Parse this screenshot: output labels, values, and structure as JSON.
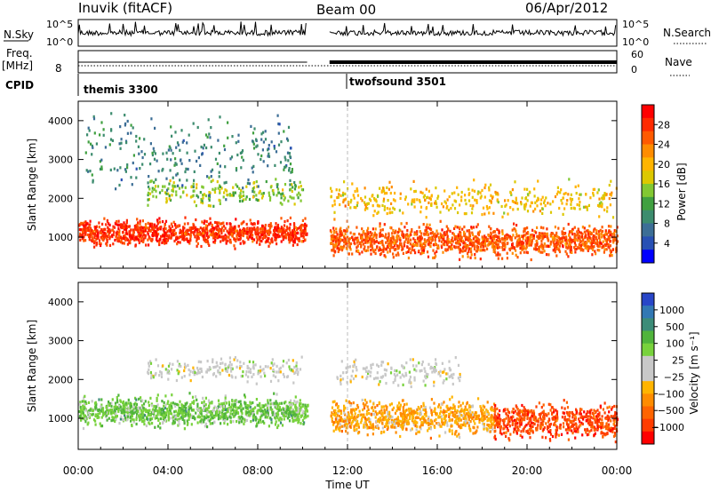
{
  "header": {
    "station": "Inuvik (fitACF)",
    "beam": "Beam 00",
    "date": "06/Apr/2012"
  },
  "top_panels": {
    "nsky_label": "N.Sky",
    "nsky_ticks": [
      "10^5",
      "10^0"
    ],
    "freq_label": "Freq.",
    "freq_unit": "[MHz]",
    "freq_ticks": [
      "8"
    ],
    "cpid_label": "CPID",
    "nsearch_label": "N.Search",
    "nsearch_ticks": [
      "10^5",
      "10^0"
    ],
    "nave_label": "Nave",
    "nave_ticks": [
      "60",
      "0"
    ]
  },
  "x_axis": {
    "label": "Time UT",
    "ticks": [
      "00:00",
      "04:00",
      "08:00",
      "12:00",
      "16:00",
      "20:00",
      "00:00"
    ]
  },
  "colorbars": {
    "power": {
      "label": "Power [dB]",
      "ticks": [
        "28",
        "24",
        "20",
        "16",
        "12",
        "8",
        "4"
      ],
      "colors": [
        "#ff0000",
        "#ff2a00",
        "#ff5a00",
        "#ff8c00",
        "#ffb400",
        "#dcc800",
        "#82c832",
        "#40a040",
        "#3c8c6e",
        "#3c6e96",
        "#2850b4",
        "#0000ff"
      ]
    },
    "velocity": {
      "label": "Velocity [m s⁻¹]",
      "ticks": [
        "1000",
        "500",
        "100",
        "25",
        "−25",
        "−100",
        "−500",
        "−1000"
      ],
      "colors": [
        "#2846c8",
        "#3278b4",
        "#3c8c78",
        "#50b43c",
        "#78d23c",
        "#c8c8c8",
        "#c8c8c8",
        "#ffb400",
        "#ff8c00",
        "#ff6400",
        "#ff3c00",
        "#ff0000"
      ]
    }
  },
  "chart_data": {
    "type": "heatmap",
    "title": "Inuvik (fitACF)  Beam 00  06/Apr/2012",
    "xlabel": "Time UT",
    "x_range": [
      "00:00",
      "24:00"
    ],
    "cpid_segments": [
      {
        "name": "themis 3300",
        "start_hour": 0.0,
        "end_hour": 10.2
      },
      {
        "name": "twofsound 3501",
        "start_hour": 11.2,
        "end_hour": 24.0
      }
    ],
    "data_gap_hours": [
      10.2,
      11.2
    ],
    "panels": [
      {
        "name": "power",
        "ylabel": "Slant Range [km]",
        "ylim": [
          200,
          4500
        ],
        "yticks": [
          "4000",
          "3000",
          "2000",
          "1000"
        ],
        "colorbar": "Power [dB]",
        "zlim": [
          0,
          30
        ],
        "scatter_bands": [
          {
            "t_start": 0.0,
            "t_end": 10.2,
            "range_center_km": 1150,
            "range_width_km": 450,
            "typical_value": 26
          },
          {
            "t_start": 11.2,
            "t_end": 24.0,
            "range_center_km": 950,
            "range_width_km": 550,
            "typical_value": 24
          },
          {
            "t_start": 3.0,
            "t_end": 10.0,
            "range_center_km": 2200,
            "range_width_km": 500,
            "typical_value": 14
          },
          {
            "t_start": 11.2,
            "t_end": 24.0,
            "range_center_km": 2000,
            "range_width_km": 600,
            "typical_value": 18
          },
          {
            "t_start": 0.3,
            "t_end": 9.5,
            "range_center_km": 3200,
            "range_width_km": 1400,
            "typical_value": 8
          }
        ]
      },
      {
        "name": "velocity",
        "ylabel": "Slant Range [km]",
        "ylim": [
          200,
          4500
        ],
        "yticks": [
          "4000",
          "3000",
          "2000",
          "1000"
        ],
        "colorbar": "Velocity [m s⁻¹]",
        "zlim": [
          -1000,
          1000
        ],
        "scatter_bands": [
          {
            "t_start": 0.0,
            "t_end": 10.2,
            "range_center_km": 1200,
            "range_width_km": 500,
            "typical_value": 300
          },
          {
            "t_start": 3.0,
            "t_end": 10.0,
            "range_center_km": 2300,
            "range_width_km": 400,
            "typical_value": 0
          },
          {
            "t_start": 11.2,
            "t_end": 18.5,
            "range_center_km": 1050,
            "range_width_km": 600,
            "typical_value": -300
          },
          {
            "t_start": 18.5,
            "t_end": 24.0,
            "range_center_km": 950,
            "range_width_km": 600,
            "typical_value": -700
          },
          {
            "t_start": 11.5,
            "t_end": 17.0,
            "range_center_km": 2200,
            "range_width_km": 500,
            "typical_value": 0
          }
        ]
      }
    ]
  }
}
